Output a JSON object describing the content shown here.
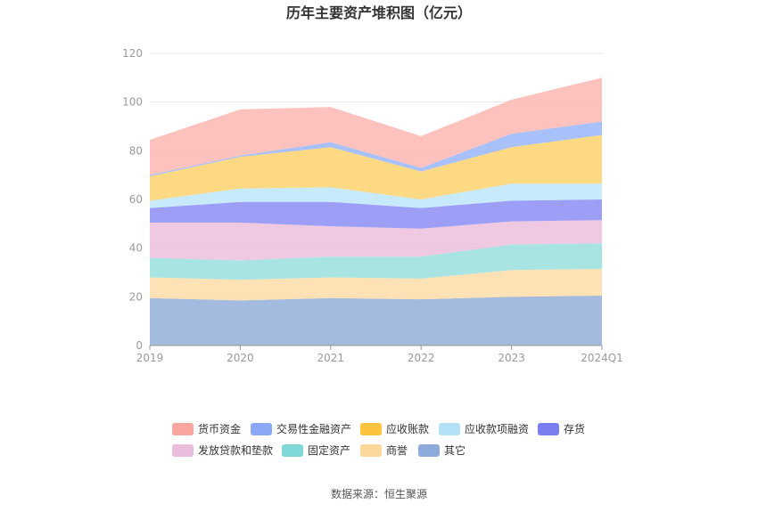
{
  "chart_data": {
    "type": "area",
    "stacked": true,
    "title": "历年主要资产堆积图（亿元）",
    "categories": [
      "2019",
      "2020",
      "2021",
      "2022",
      "2023",
      "2024Q1"
    ],
    "ylim": [
      0,
      120
    ],
    "yticks": [
      0,
      20,
      40,
      60,
      80,
      100,
      120
    ],
    "grid": true,
    "legend_position": "bottom",
    "series": [
      {
        "name": "其它",
        "color": "#94afdb",
        "values": [
          19.5,
          18.5,
          19.5,
          19.0,
          20.0,
          20.5
        ]
      },
      {
        "name": "商誉",
        "color": "#fedda8",
        "values": [
          8.5,
          8.5,
          8.5,
          8.5,
          11.0,
          11.0
        ]
      },
      {
        "name": "固定资产",
        "color": "#99dfdd",
        "values": [
          8.0,
          8.0,
          8.5,
          9.0,
          10.5,
          10.5
        ]
      },
      {
        "name": "发放贷款和垫款",
        "color": "#ecc0dd",
        "values": [
          14.5,
          15.5,
          12.5,
          11.5,
          9.5,
          9.5
        ]
      },
      {
        "name": "存货",
        "color": "#8b8ef3",
        "values": [
          6.0,
          8.5,
          10.0,
          8.5,
          8.5,
          8.5
        ]
      },
      {
        "name": "应收款项融资",
        "color": "#bde7fb",
        "values": [
          3.0,
          5.5,
          6.0,
          3.5,
          7.0,
          6.5
        ]
      },
      {
        "name": "应收账款",
        "color": "#fed26e",
        "values": [
          10.0,
          13.0,
          16.5,
          11.5,
          15.0,
          20.0
        ]
      },
      {
        "name": "交易性金融资产",
        "color": "#99b6fa",
        "values": [
          0.5,
          0.5,
          2.0,
          1.5,
          5.5,
          5.5
        ]
      },
      {
        "name": "货币资金",
        "color": "#fdb7b3",
        "values": [
          14.5,
          19.0,
          14.5,
          13.0,
          14.0,
          18.0
        ]
      }
    ]
  },
  "legend_order": [
    "货币资金",
    "交易性金融资产",
    "应收账款",
    "应收款项融资",
    "存货",
    "发放贷款和垫款",
    "固定资产",
    "商誉",
    "其它"
  ],
  "legend_colors": [
    "#f9a6a0",
    "#8aa8f5",
    "#fdc33e",
    "#b3e1f8",
    "#7b7ef0",
    "#e9bddb",
    "#7fd8d5",
    "#fed79b",
    "#8eaadb"
  ],
  "source": "数据来源：恒生聚源"
}
